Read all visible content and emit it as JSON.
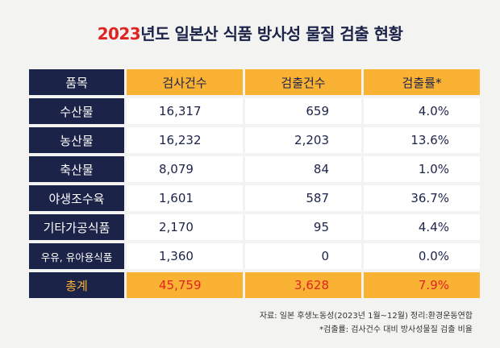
{
  "title": {
    "year": "2023",
    "rest": "년도 일본산 식품 방사성 물질 검출 현황"
  },
  "chart_data": {
    "type": "table",
    "columns": [
      "품목",
      "검사건수",
      "검출건수",
      "검출률*"
    ],
    "rows": [
      {
        "item": "수산물",
        "inspected": "16,317",
        "detected": "659",
        "rate": "4.0%"
      },
      {
        "item": "농산물",
        "inspected": "16,232",
        "detected": "2,203",
        "rate": "13.6%"
      },
      {
        "item": "축산물",
        "inspected": "8,079",
        "detected": "84",
        "rate": "1.0%"
      },
      {
        "item": "야생조수육",
        "inspected": "1,601",
        "detected": "587",
        "rate": "36.7%"
      },
      {
        "item": "기타가공식품",
        "inspected": "2,170",
        "detected": "95",
        "rate": "4.4%"
      },
      {
        "item": "우유, 유아용식품",
        "inspected": "1,360",
        "detected": "0",
        "rate": "0.0%"
      }
    ],
    "total": {
      "item": "총계",
      "inspected": "45,759",
      "detected": "3,628",
      "rate": "7.9%"
    }
  },
  "notes": {
    "source": "자료: 일본 후생노동성(2023년 1월~12월) 정리:환경운동연합",
    "footnote": "*검출률: 검사건수 대비 방사성물질 검출 비율"
  },
  "colors": {
    "navy": "#1c2349",
    "orange": "#f9b233",
    "red": "#e02424"
  }
}
